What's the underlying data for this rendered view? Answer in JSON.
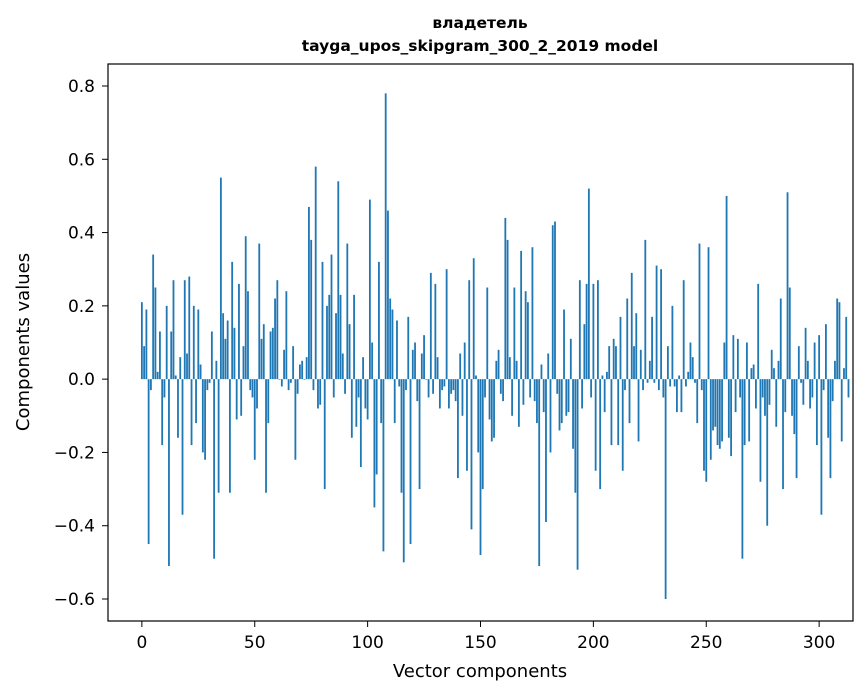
{
  "chart_data": {
    "type": "bar",
    "title_line1": "владетель",
    "title_line2": "tayga_upos_skipgram_300_2_2019 model",
    "xlabel": "Vector components",
    "ylabel": "Components values",
    "xlim": [
      -15,
      315
    ],
    "ylim": [
      -0.66,
      0.86
    ],
    "x_ticks": [
      0,
      50,
      100,
      150,
      200,
      250,
      300
    ],
    "x_tick_labels": [
      "0",
      "50",
      "100",
      "150",
      "200",
      "250",
      "300"
    ],
    "y_ticks": [
      0.8,
      0.6,
      0.4,
      0.2,
      0.0,
      -0.2,
      -0.4,
      -0.6
    ],
    "y_tick_labels": [
      "0.8",
      "0.6",
      "0.4",
      "0.2",
      "0.0",
      "−0.2",
      "−0.4",
      "−0.6"
    ],
    "grid": false,
    "bar_color": "#1f77b4",
    "values": [
      0.21,
      0.09,
      0.19,
      -0.45,
      -0.03,
      0.34,
      0.25,
      0.02,
      0.13,
      -0.18,
      -0.05,
      0.2,
      -0.51,
      0.13,
      0.27,
      0.01,
      -0.16,
      0.06,
      -0.37,
      0.27,
      0.07,
      0.28,
      -0.18,
      0.2,
      -0.12,
      0.19,
      0.04,
      -0.2,
      -0.22,
      -0.03,
      -0.01,
      0.13,
      -0.49,
      0.05,
      -0.31,
      0.55,
      0.18,
      0.11,
      0.16,
      -0.31,
      0.32,
      0.14,
      -0.11,
      0.26,
      -0.1,
      0.09,
      0.39,
      0.24,
      -0.03,
      -0.05,
      -0.22,
      -0.08,
      0.37,
      0.11,
      0.15,
      -0.31,
      -0.12,
      0.13,
      0.14,
      0.22,
      0.27,
      0.0,
      -0.02,
      0.08,
      0.24,
      -0.03,
      -0.01,
      0.09,
      -0.22,
      -0.04,
      0.04,
      0.05,
      0.0,
      0.06,
      0.47,
      0.38,
      -0.03,
      0.58,
      -0.08,
      -0.07,
      0.32,
      -0.3,
      0.2,
      0.23,
      0.34,
      -0.05,
      0.18,
      0.54,
      0.23,
      0.07,
      -0.04,
      0.37,
      0.15,
      -0.16,
      0.23,
      -0.13,
      -0.05,
      -0.24,
      0.06,
      -0.08,
      -0.11,
      0.49,
      0.1,
      -0.35,
      -0.26,
      0.32,
      -0.12,
      -0.47,
      0.78,
      0.46,
      0.22,
      0.19,
      -0.12,
      0.16,
      -0.02,
      -0.31,
      -0.5,
      -0.03,
      0.17,
      -0.45,
      0.08,
      0.1,
      -0.06,
      -0.3,
      0.07,
      0.12,
      0.0,
      -0.05,
      0.29,
      -0.04,
      0.26,
      0.06,
      -0.08,
      -0.03,
      -0.02,
      0.3,
      -0.08,
      -0.04,
      -0.03,
      -0.06,
      -0.27,
      0.07,
      -0.1,
      0.1,
      -0.25,
      0.27,
      -0.41,
      0.33,
      0.01,
      -0.2,
      -0.48,
      -0.3,
      -0.05,
      0.25,
      -0.11,
      -0.17,
      -0.16,
      0.05,
      0.08,
      -0.04,
      -0.06,
      0.44,
      0.38,
      0.06,
      -0.1,
      0.25,
      0.05,
      -0.13,
      0.35,
      -0.07,
      0.24,
      0.21,
      -0.05,
      0.36,
      -0.06,
      -0.12,
      -0.51,
      0.04,
      -0.09,
      -0.39,
      0.07,
      -0.2,
      0.42,
      0.43,
      -0.04,
      -0.14,
      -0.12,
      0.19,
      -0.1,
      -0.09,
      0.11,
      -0.19,
      -0.31,
      -0.52,
      0.27,
      -0.08,
      0.15,
      0.26,
      0.52,
      -0.05,
      0.26,
      -0.25,
      0.27,
      -0.3,
      0.01,
      -0.09,
      0.02,
      0.09,
      -0.18,
      0.11,
      0.09,
      -0.18,
      0.17,
      -0.25,
      -0.03,
      0.22,
      -0.12,
      0.29,
      0.09,
      0.18,
      -0.17,
      0.08,
      -0.03,
      0.38,
      -0.01,
      0.05,
      0.17,
      -0.01,
      0.31,
      -0.03,
      0.3,
      -0.05,
      -0.6,
      0.09,
      -0.02,
      0.2,
      -0.02,
      -0.09,
      0.01,
      -0.09,
      0.27,
      -0.02,
      0.02,
      0.1,
      0.06,
      -0.01,
      -0.12,
      0.37,
      -0.03,
      -0.25,
      -0.28,
      0.36,
      -0.22,
      -0.14,
      -0.13,
      -0.18,
      -0.19,
      -0.17,
      0.1,
      0.5,
      -0.16,
      -0.21,
      0.12,
      -0.09,
      0.11,
      -0.05,
      -0.49,
      -0.18,
      0.1,
      -0.17,
      0.03,
      0.04,
      -0.08,
      0.26,
      -0.28,
      -0.05,
      -0.1,
      -0.4,
      -0.07,
      0.08,
      0.03,
      -0.13,
      0.05,
      0.22,
      -0.3,
      -0.09,
      0.51,
      0.25,
      -0.1,
      -0.15,
      -0.27,
      0.09,
      -0.01,
      -0.07,
      0.14,
      0.05,
      -0.08,
      -0.05,
      0.1,
      -0.18,
      0.12,
      -0.37,
      -0.03,
      0.15,
      -0.16,
      -0.27,
      -0.06,
      0.05,
      0.22,
      0.21,
      -0.17,
      0.03,
      0.17,
      -0.05
    ]
  }
}
